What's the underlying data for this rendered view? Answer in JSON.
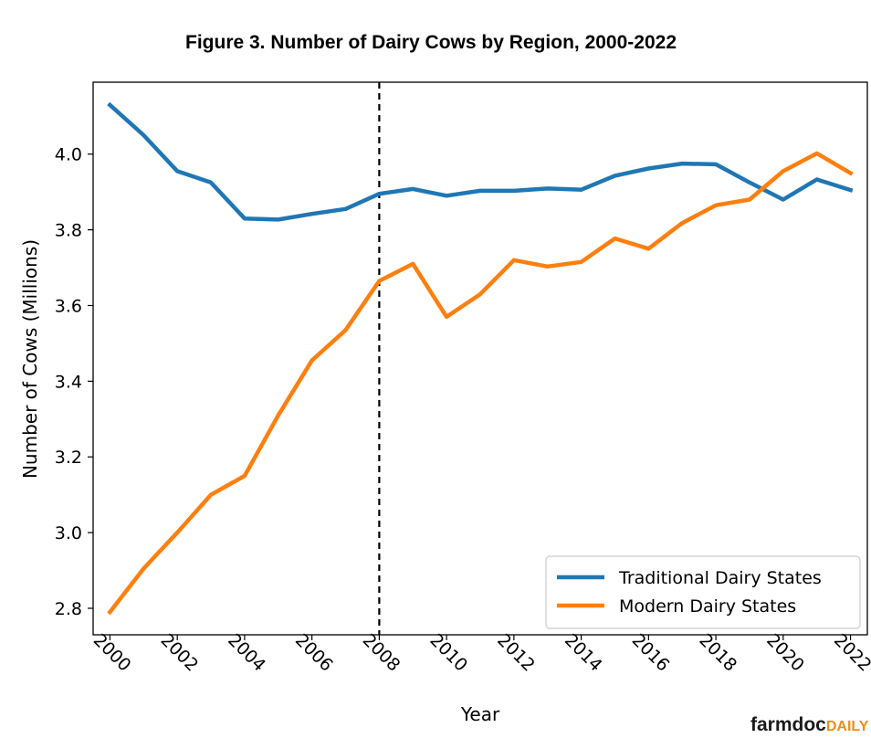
{
  "chart_data": {
    "type": "line",
    "title": "Figure 3. Number of Dairy Cows by Region, 2000-2022",
    "xlabel": "Year",
    "ylabel": "Number of Cows (Millions)",
    "xlim": [
      1999.5,
      2022.5
    ],
    "ylim": [
      2.73,
      4.19
    ],
    "x_ticks": [
      2000,
      2002,
      2004,
      2006,
      2008,
      2010,
      2012,
      2014,
      2016,
      2018,
      2020,
      2022
    ],
    "y_ticks": [
      2.8,
      3.0,
      3.2,
      3.4,
      3.6,
      3.8,
      4.0
    ],
    "y_tick_labels": [
      "2.8",
      "3.0",
      "3.2",
      "3.4",
      "3.6",
      "3.8",
      "4.0"
    ],
    "vline_x": 2008,
    "legend_position": "lower-right",
    "grid": false,
    "x": [
      2000,
      2001,
      2002,
      2003,
      2004,
      2005,
      2006,
      2007,
      2008,
      2009,
      2010,
      2011,
      2012,
      2013,
      2014,
      2015,
      2016,
      2017,
      2018,
      2019,
      2020,
      2021,
      2022
    ],
    "series": [
      {
        "name": "Traditional Dairy States",
        "color": "#1f77b4",
        "values": [
          4.13,
          4.05,
          3.955,
          3.925,
          3.83,
          3.827,
          3.842,
          3.855,
          3.895,
          3.908,
          3.89,
          3.903,
          3.903,
          3.909,
          3.906,
          3.943,
          3.962,
          3.975,
          3.973,
          3.925,
          3.88,
          3.933,
          3.905
        ]
      },
      {
        "name": "Modern Dairy States",
        "color": "#ff7f0e",
        "values": [
          2.79,
          2.905,
          3.0,
          3.1,
          3.15,
          3.31,
          3.455,
          3.535,
          3.665,
          3.71,
          3.57,
          3.63,
          3.72,
          3.703,
          3.715,
          3.777,
          3.75,
          3.818,
          3.865,
          3.88,
          3.955,
          4.002,
          3.95
        ]
      }
    ]
  },
  "brand": {
    "main": "farmdoc",
    "suffix": "DAILY"
  }
}
